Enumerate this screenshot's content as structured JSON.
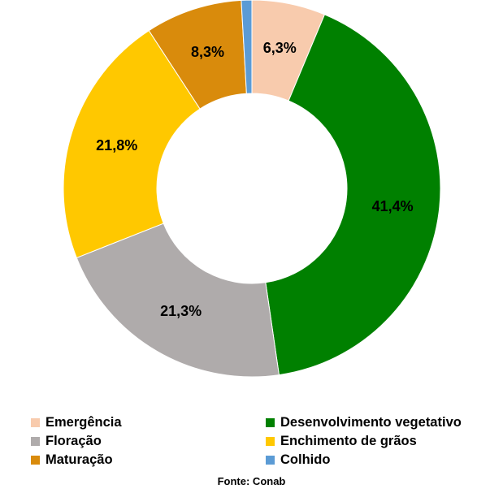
{
  "chart_data": {
    "type": "pie",
    "variant": "donut",
    "title": "",
    "categories": [
      "Emergência",
      "Desenvolvimento vegetativo",
      "Floração",
      "Enchimento de grãos",
      "Maturação",
      "Colhido"
    ],
    "slice_order_clockwise_from_top": [
      "Emergência",
      "Desenvolvimento vegetativo",
      "Floração",
      "Enchimento de grãos",
      "Maturação",
      "Colhido"
    ],
    "values": [
      6.3,
      41.4,
      21.3,
      21.8,
      8.3,
      0.9
    ],
    "data_labels": [
      "6,3%",
      "41,4%",
      "21,3%",
      "21,8%",
      "8,3%",
      ""
    ],
    "colors": [
      "#F8CBAD",
      "#008000",
      "#AFABAB",
      "#FFC800",
      "#D98B0C",
      "#5B9BD5"
    ],
    "unit": "%",
    "legend": {
      "placement": "bottom",
      "columns": 2,
      "items": [
        {
          "label": "Emergência",
          "color": "#F8CBAD"
        },
        {
          "label": "Desenvolvimento vegetativo",
          "color": "#008000"
        },
        {
          "label": "Floração",
          "color": "#AFABAB"
        },
        {
          "label": "Enchimento de grãos",
          "color": "#FFC800"
        },
        {
          "label": "Maturação",
          "color": "#D98B0C"
        },
        {
          "label": "Colhido",
          "color": "#5B9BD5"
        }
      ]
    },
    "source": "Fonte: Conab"
  }
}
